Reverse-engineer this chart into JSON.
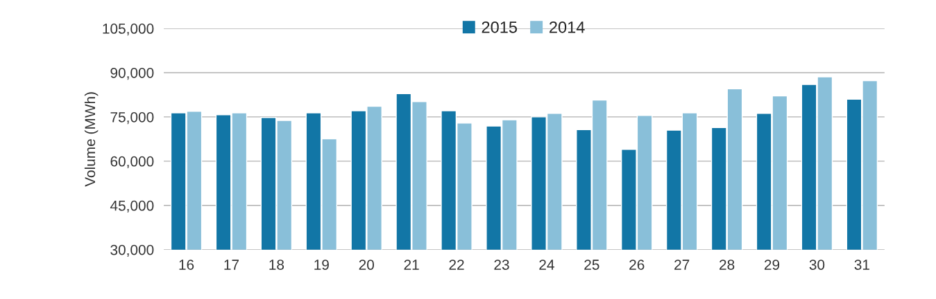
{
  "chart_data": {
    "type": "bar",
    "ylabel": "Volume (MWh)",
    "categories": [
      "16",
      "17",
      "18",
      "19",
      "20",
      "21",
      "22",
      "23",
      "24",
      "25",
      "26",
      "27",
      "28",
      "29",
      "30",
      "31"
    ],
    "series": [
      {
        "name": "2015",
        "color": "#1276a6",
        "values": [
          76400,
          75700,
          74800,
          76400,
          77100,
          82900,
          77100,
          71900,
          75000,
          70700,
          64000,
          70500,
          71400,
          76200,
          86000,
          81000
        ]
      },
      {
        "name": "2014",
        "color": "#89bfd9",
        "values": [
          76900,
          76400,
          73800,
          67600,
          78600,
          80200,
          72900,
          74000,
          76200,
          80700,
          75500,
          76400,
          84500,
          82100,
          88600,
          87300
        ]
      }
    ],
    "ylim": [
      30000,
      105000
    ],
    "yticks": [
      {
        "value": 30000,
        "label": "30,000"
      },
      {
        "value": 45000,
        "label": "45,000"
      },
      {
        "value": 60000,
        "label": "60,000"
      },
      {
        "value": 75000,
        "label": "75,000"
      },
      {
        "value": 90000,
        "label": "90,000"
      },
      {
        "value": 105000,
        "label": "105,000"
      }
    ],
    "grid": "y",
    "legend": "top"
  }
}
